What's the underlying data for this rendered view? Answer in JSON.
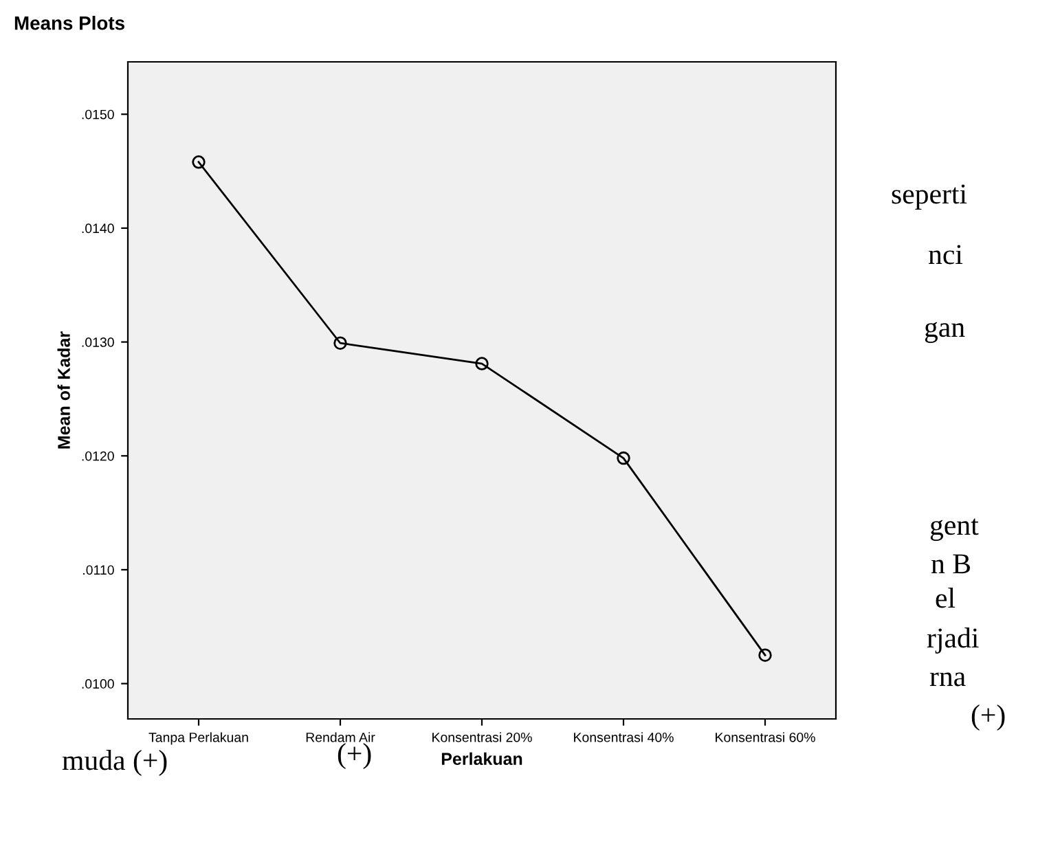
{
  "chart_data": {
    "type": "line",
    "title": "Means Plots",
    "xlabel": "Perlakuan",
    "ylabel": "Mean of Kadar",
    "categories": [
      "Tanpa Perlakuan",
      "Rendam Air",
      "Konsentrasi 20%",
      "Konsentrasi 40%",
      "Konsentrasi 60%"
    ],
    "series": [
      {
        "color": "#000000",
        "values": [
          0.01458,
          0.01299,
          0.01281,
          0.01198,
          0.01025
        ]
      }
    ],
    "ylim": [
      0.00969,
      0.01546
    ],
    "yticks": [
      {
        "value": 0.01,
        "label": ".0100"
      },
      {
        "value": 0.011,
        "label": ".0110"
      },
      {
        "value": 0.012,
        "label": ".0120"
      },
      {
        "value": 0.013,
        "label": ".0130"
      },
      {
        "value": 0.014,
        "label": ".0140"
      },
      {
        "value": 0.015,
        "label": ".0150"
      }
    ],
    "marker": "circle",
    "line_style": "solid",
    "grid": false,
    "legend": false,
    "annotations": [
      "seperti",
      "nci",
      "gan",
      "gent",
      "n B",
      "el",
      "rjadi",
      "rna",
      "(+)",
      "muda (+)",
      "(+)"
    ]
  }
}
